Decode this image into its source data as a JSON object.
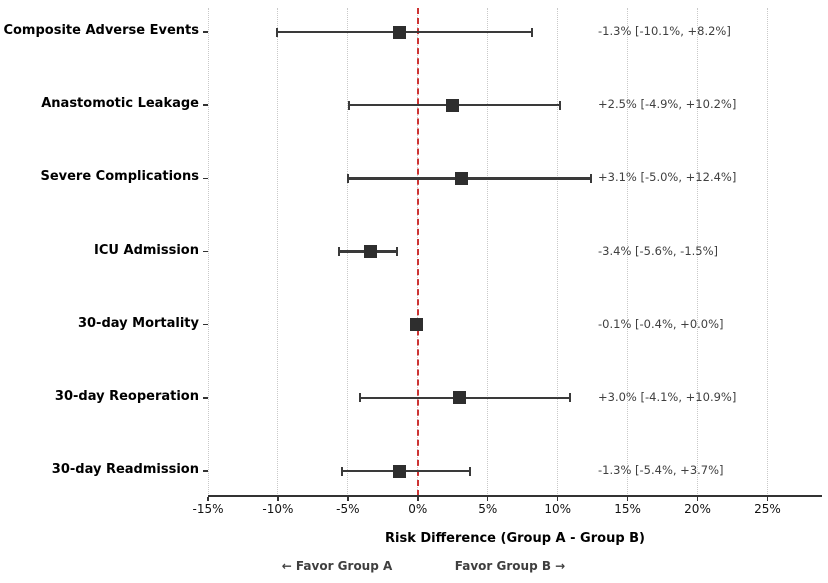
{
  "chart_data": {
    "type": "scatter",
    "subtype": "forest-plot",
    "title": "",
    "categories": [
      "Composite Adverse Events",
      "Anastomotic Leakage",
      "Severe Complications",
      "ICU Admission",
      "30-day Mortality",
      "30-day Reoperation",
      "30-day Readmission"
    ],
    "series": [
      {
        "name": "Risk difference point estimate (%)",
        "values": [
          -1.3,
          2.5,
          3.1,
          -3.4,
          -0.1,
          3.0,
          -1.3
        ],
        "ci_low": [
          -10.1,
          -4.9,
          -5.0,
          -5.6,
          -0.4,
          -4.1,
          -5.4
        ],
        "ci_high": [
          8.2,
          10.2,
          12.4,
          -1.5,
          0.0,
          10.9,
          3.7
        ]
      }
    ],
    "annotations": [
      "-1.3% [-10.1%, +8.2%]",
      "+2.5% [-4.9%, +10.2%]",
      "+3.1% [-5.0%, +12.4%]",
      "-3.4% [-5.6%, -1.5%]",
      "-0.1% [-0.4%, +0.0%]",
      "+3.0% [-4.1%, +10.9%]",
      "-1.3% [-5.4%, +3.7%]"
    ],
    "xlabel": "Risk Difference (Group A - Group B)",
    "ylabel": "",
    "xlim": [
      -15,
      28.9
    ],
    "xticks": [
      -15,
      -10,
      -5,
      0,
      5,
      10,
      15,
      20,
      25
    ],
    "xtick_labels": [
      "-15%",
      "-10%",
      "-5%",
      "0%",
      "5%",
      "10%",
      "15%",
      "20%",
      "25%"
    ],
    "grid": {
      "vertical": true,
      "style": "dotted",
      "color": "#c9c9c9"
    },
    "reference_line": {
      "x": 0,
      "style": "dashed",
      "color": "#cc3333"
    },
    "footer_left": "← Favor Group A",
    "footer_right": "Favor Group B →",
    "legend": "none",
    "colors": {
      "marker": "#2e2e2e",
      "error_bar": "#3a3a3a",
      "axis": "#333333",
      "annotation_text": "#3f3f3f",
      "category_text": "#000000",
      "tick_text": "#111111",
      "footer_text": "#3f3f3f",
      "background": "#ffffff"
    }
  }
}
